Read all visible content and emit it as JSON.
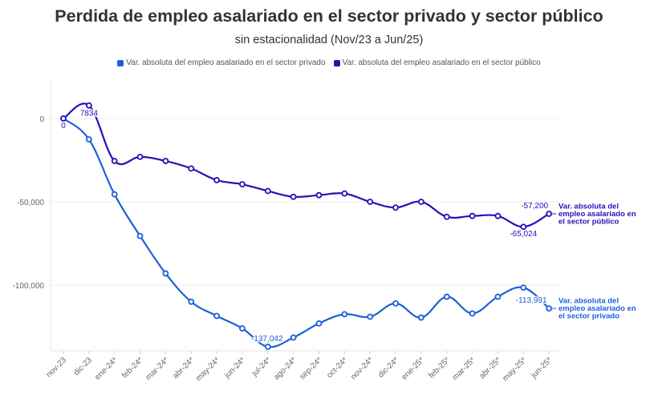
{
  "chart_data": {
    "type": "line",
    "title": "Perdida de empleo asalariado en el sector privado y sector público",
    "subtitle": "sin estacionalidad (Nov/23 a Jun/25)",
    "categories": [
      "nov-23",
      "dic-23",
      "ene-24*",
      "feb-24*",
      "mar-24*",
      "abr-24*",
      "may-24*",
      "jun-24*",
      "jul-24*",
      "ago-24*",
      "sep-24*",
      "oct-24*",
      "nov-24*",
      "dic-24*",
      "ene-25*",
      "feb-25*",
      "mar-25*",
      "abr-25*",
      "may-25*",
      "jun-25*"
    ],
    "yticks": [
      0,
      -50000,
      -100000
    ],
    "ytick_labels": [
      "0",
      "-50,000",
      "-100,000"
    ],
    "ylim": [
      -140000,
      22000
    ],
    "series": [
      {
        "name": "Var. absoluta del empleo asalariado en el sector privado",
        "end_label": [
          "Var. absoluta del",
          "empleo asalariado en",
          "el sector privado"
        ],
        "color": "#1c5fd8",
        "values": [
          0,
          -12500,
          -45500,
          -70500,
          -93000,
          -110000,
          -118500,
          -126000,
          -137042,
          -131500,
          -123000,
          -117500,
          -119000,
          -111000,
          -119500,
          -107000,
          -117000,
          -107000,
          -101500,
          -113991
        ]
      },
      {
        "name": "Var. absoluta del empleo asalariado en el sector público",
        "end_label": [
          "Var. absoluta del",
          "empleo asalariado en",
          "el sector público"
        ],
        "color": "#2a0fb5",
        "values": [
          0,
          7834,
          -25500,
          -23000,
          -25500,
          -30000,
          -37000,
          -39500,
          -43500,
          -47000,
          -46000,
          -45000,
          -50000,
          -53500,
          -50000,
          -59000,
          -58500,
          -58500,
          -65024,
          -57200
        ]
      }
    ],
    "data_labels": [
      {
        "series": 1,
        "index": 0,
        "text": "0"
      },
      {
        "series": 1,
        "index": 1,
        "text": "7834"
      },
      {
        "series": 0,
        "index": 8,
        "text": "-137,042"
      },
      {
        "series": 0,
        "index": 19,
        "text": "-113,991"
      },
      {
        "series": 1,
        "index": 18,
        "text": "-65,024"
      },
      {
        "series": 1,
        "index": 19,
        "text": "-57,200"
      }
    ]
  }
}
